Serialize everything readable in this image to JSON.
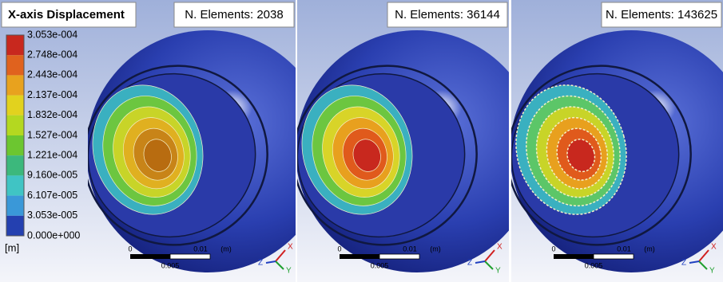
{
  "legend": {
    "title": "X-axis Displacement",
    "labels": [
      "3.053e-004",
      "2.748e-004",
      "2.443e-004",
      "2.137e-004",
      "1.832e-004",
      "1.527e-004",
      "1.221e-004",
      "9.160e-005",
      "6.107e-005",
      "3.053e-005",
      "0.000e+000"
    ],
    "unit": "[m]"
  },
  "panels": [
    {
      "title": "N. Elements: 2038"
    },
    {
      "title": "N. Elements: 36144"
    },
    {
      "title": "N. Elements: 143625"
    }
  ],
  "scale_bar": {
    "start": "0",
    "end": "0.01",
    "unit": "(m)",
    "middle": "0.005"
  },
  "triad": {
    "x": "X",
    "y": "Y",
    "z": "Z"
  }
}
